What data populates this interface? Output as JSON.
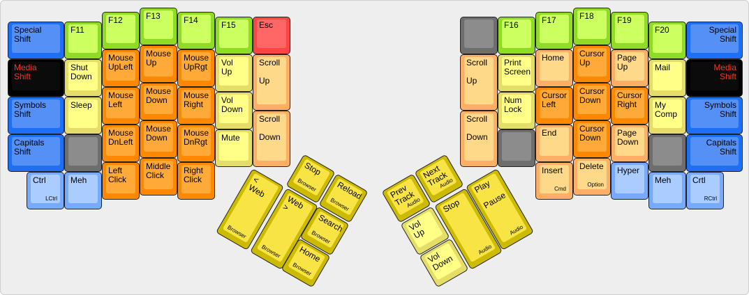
{
  "colors": {
    "blue": "#1f6ff5",
    "black": "#000000",
    "media_text": "#ff3322",
    "light_blue": "#aaccff",
    "green": "#ccff60",
    "light_yellow": "#ffff88",
    "orange": "#ffaa38",
    "light_orange": "#ffd98a",
    "gray": "#8c8c8c",
    "red": "#ff6666",
    "yellow": "#f8e444"
  },
  "left_keys": [
    {
      "label": "Special\nShift",
      "color": "blue"
    },
    {
      "label": "Media\nShift",
      "color": "black"
    },
    {
      "label": "Symbols\nShift",
      "color": "blue"
    },
    {
      "label": "Capitals\nShift",
      "color": "blue"
    },
    {
      "label": "Ctrl",
      "sub": "LCtrl",
      "color": "lblue"
    },
    {
      "label": "F11",
      "color": "green"
    },
    {
      "label": "Shut\nDown",
      "color": "lyellow"
    },
    {
      "label": "Sleep",
      "color": "lyellow"
    },
    {
      "label": "",
      "color": "gray"
    },
    {
      "label": "Meh",
      "color": "lblue"
    },
    {
      "label": "F12",
      "color": "green"
    },
    {
      "label": "Mouse\nUpLeft",
      "color": "orange"
    },
    {
      "label": "Mouse\nLeft",
      "color": "orange"
    },
    {
      "label": "Mouse\nDnLeft",
      "color": "orange"
    },
    {
      "label": "Left\nClick",
      "color": "orange"
    },
    {
      "label": "F13",
      "color": "green"
    },
    {
      "label": "Mouse\nUp",
      "color": "orange"
    },
    {
      "label": "Mouse\nDown",
      "color": "orange"
    },
    {
      "label": "Mouse\nDown",
      "color": "orange"
    },
    {
      "label": "Middle\nClick",
      "color": "orange"
    },
    {
      "label": "F14",
      "color": "green"
    },
    {
      "label": "Mouse\nUpRgt",
      "color": "orange"
    },
    {
      "label": "Mouse\nRight",
      "color": "orange"
    },
    {
      "label": "Mouse\nDnRgt",
      "color": "orange"
    },
    {
      "label": "Right\nClick",
      "color": "orange"
    },
    {
      "label": "F15",
      "color": "green"
    },
    {
      "label": "Vol\nUp",
      "color": "lyellow"
    },
    {
      "label": "Vol\nDown",
      "color": "lyellow"
    },
    {
      "label": "Mute",
      "color": "lyellow"
    },
    {
      "label": "Esc",
      "color": "red"
    },
    {
      "label": "Scroll\n\nUp",
      "color": "lorange"
    },
    {
      "label": "Scroll\n\nDown",
      "color": "lorange"
    }
  ],
  "right_keys": [
    {
      "label": "Special\nShift",
      "color": "blue"
    },
    {
      "label": "Media\nShift",
      "color": "black"
    },
    {
      "label": "Symbols\nShift",
      "color": "blue"
    },
    {
      "label": "Capitals\nShift",
      "color": "blue"
    },
    {
      "label": "Crtl",
      "sub": "RCtrl",
      "color": "lblue"
    },
    {
      "label": "F20",
      "color": "green"
    },
    {
      "label": "Mail",
      "color": "lyellow"
    },
    {
      "label": "My\nComp",
      "color": "lyellow"
    },
    {
      "label": "",
      "color": "gray"
    },
    {
      "label": "Meh",
      "color": "lblue"
    },
    {
      "label": "F19",
      "color": "green"
    },
    {
      "label": "Page\nUp",
      "color": "lorange"
    },
    {
      "label": "Cursor\nRight",
      "color": "orange"
    },
    {
      "label": "Page\nDown",
      "color": "lorange"
    },
    {
      "label": "Hyper",
      "color": "lblue"
    },
    {
      "label": "F18",
      "color": "green"
    },
    {
      "label": "Cursor\nUp",
      "color": "orange"
    },
    {
      "label": "Cursor\nDown",
      "color": "orange"
    },
    {
      "label": "Cursor\nDown",
      "color": "orange"
    },
    {
      "label": "Delete",
      "sub": "Option",
      "color": "lorange"
    },
    {
      "label": "F17",
      "color": "green"
    },
    {
      "label": "Home",
      "color": "lorange"
    },
    {
      "label": "Cursor\nLeft",
      "color": "orange"
    },
    {
      "label": "End",
      "color": "lorange"
    },
    {
      "label": "Insert",
      "sub": "Cmd",
      "color": "lorange"
    },
    {
      "label": "F16",
      "color": "green"
    },
    {
      "label": "Print\nScreen",
      "color": "lyellow"
    },
    {
      "label": "Num\nLock",
      "color": "lyellow"
    },
    {
      "label": "",
      "color": "gray"
    },
    {
      "label": "",
      "color": "gray"
    },
    {
      "label": "Scroll\n\nUp",
      "color": "lorange"
    },
    {
      "label": "Scroll\n\nDown",
      "color": "lorange"
    }
  ],
  "left_thumb": [
    {
      "label": "Stop",
      "sub": "Browser",
      "color": "yellow"
    },
    {
      "label": "Reload",
      "sub": "Browser",
      "color": "yellow"
    },
    {
      "label": "< Web",
      "sub": "Browser",
      "color": "yellow"
    },
    {
      "label": "Web >",
      "sub": "Browser",
      "color": "yellow"
    },
    {
      "label": "Search",
      "sub": "Browser",
      "color": "yellow"
    },
    {
      "label": "Home",
      "sub": "Browser",
      "color": "yellow"
    }
  ],
  "right_thumb": [
    {
      "label": "Prev\nTrack",
      "sub": "Audio",
      "color": "yellow"
    },
    {
      "label": "Next\nTrack",
      "sub": "Audio",
      "color": "yellow"
    },
    {
      "label": "Vol\nUp",
      "color": "lyellow"
    },
    {
      "label": "Vol\nDown",
      "color": "lyellow"
    },
    {
      "label": "Stop",
      "sub": "Audio",
      "color": "yellow"
    },
    {
      "label": "Play\n\nPause",
      "sub": "Audio",
      "color": "yellow"
    }
  ]
}
